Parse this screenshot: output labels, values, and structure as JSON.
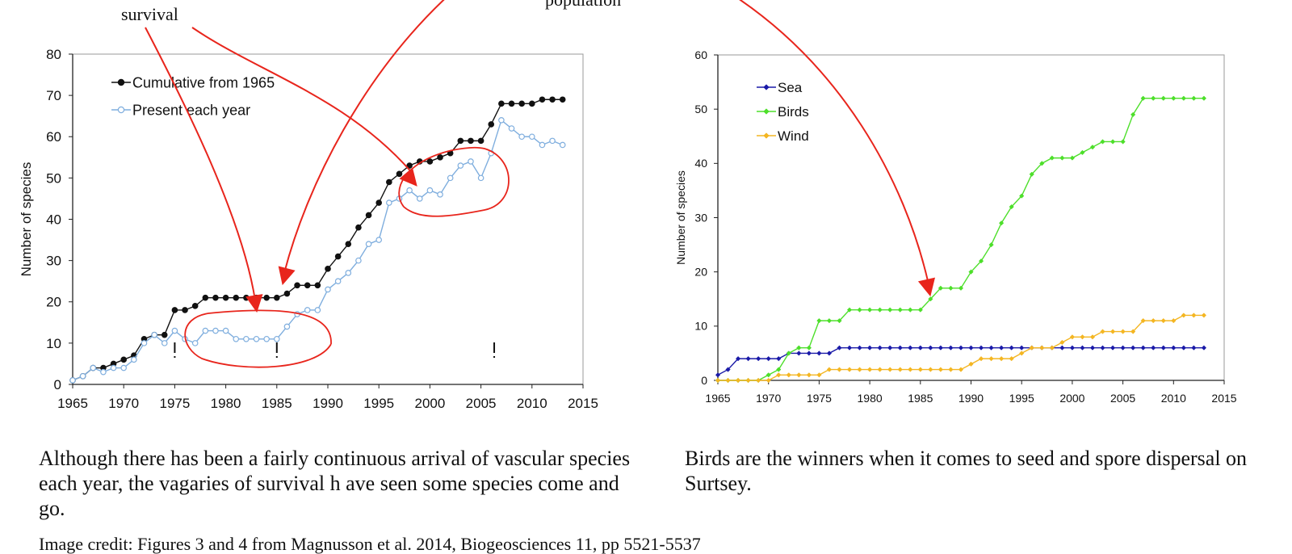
{
  "notes": {
    "survival": "survival",
    "population": "population"
  },
  "captions": {
    "left": "Although there has been a fairly continuous arrival of vascular species each year, the vagaries of survival h ave seen some species come and go.",
    "right": "Birds are the winners when it comes to seed and spore dispersal on Surtsey."
  },
  "footer": "Image credit: Figures 3 and 4 from Magnusson et al. 2014, Biogeosciences 11, pp 5521-5537",
  "colors": {
    "annotation": "#e8251c",
    "cumulative": "#111111",
    "present": "#7faede",
    "sea": "#1a1aa8",
    "birds": "#4ddf2a",
    "wind": "#f4b622"
  },
  "chart_data": [
    {
      "type": "line",
      "title": "",
      "xlabel": "",
      "ylabel": "Number of species",
      "xlim": [
        1965,
        2015
      ],
      "ylim": [
        0,
        80
      ],
      "xticks": [
        1965,
        1970,
        1975,
        1980,
        1985,
        1990,
        1995,
        2000,
        2005,
        2010,
        2015
      ],
      "yticks": [
        0,
        10,
        20,
        30,
        40,
        50,
        60,
        70,
        80
      ],
      "legend": "top-left",
      "grid": false,
      "x": [
        1965,
        1966,
        1967,
        1968,
        1969,
        1970,
        1971,
        1972,
        1973,
        1974,
        1975,
        1976,
        1977,
        1978,
        1979,
        1980,
        1981,
        1982,
        1983,
        1984,
        1985,
        1986,
        1987,
        1988,
        1989,
        1990,
        1991,
        1992,
        1993,
        1994,
        1995,
        1996,
        1997,
        1998,
        1999,
        2000,
        2001,
        2002,
        2003,
        2004,
        2005,
        2006,
        2007,
        2008,
        2009,
        2010,
        2011,
        2012,
        2013
      ],
      "series": [
        {
          "name": "Cumulative from 1965",
          "color": "#111111",
          "values": [
            1,
            2,
            4,
            4,
            5,
            6,
            7,
            11,
            12,
            12,
            18,
            18,
            19,
            21,
            21,
            21,
            21,
            21,
            21,
            21,
            21,
            22,
            24,
            24,
            24,
            28,
            31,
            34,
            38,
            41,
            44,
            49,
            51,
            53,
            54,
            54,
            55,
            56,
            59,
            59,
            59,
            63,
            68,
            68,
            68,
            68,
            69,
            69,
            69
          ]
        },
        {
          "name": "Present each year",
          "color": "#7faede",
          "values": [
            1,
            2,
            4,
            3,
            4,
            4,
            6,
            10,
            12,
            10,
            13,
            11,
            10,
            13,
            13,
            13,
            11,
            11,
            11,
            11,
            11,
            14,
            17,
            18,
            18,
            23,
            25,
            27,
            30,
            34,
            35,
            44,
            45,
            47,
            45,
            47,
            46,
            50,
            53,
            54,
            50,
            56,
            64,
            62,
            60,
            60,
            58,
            59,
            58
          ]
        }
      ],
      "annotations": {
        "event_markers_x": [
          1975,
          1985,
          2006.3
        ]
      }
    },
    {
      "type": "line",
      "title": "",
      "xlabel": "",
      "ylabel": "Number of species",
      "xlim": [
        1965,
        2015
      ],
      "ylim": [
        0,
        60
      ],
      "xticks": [
        1965,
        1970,
        1975,
        1980,
        1985,
        1990,
        1995,
        2000,
        2005,
        2010,
        2015
      ],
      "yticks": [
        0,
        10,
        20,
        30,
        40,
        50,
        60
      ],
      "legend": "top-left",
      "grid": false,
      "x": [
        1965,
        1966,
        1967,
        1968,
        1969,
        1970,
        1971,
        1972,
        1973,
        1974,
        1975,
        1976,
        1977,
        1978,
        1979,
        1980,
        1981,
        1982,
        1983,
        1984,
        1985,
        1986,
        1987,
        1988,
        1989,
        1990,
        1991,
        1992,
        1993,
        1994,
        1995,
        1996,
        1997,
        1998,
        1999,
        2000,
        2001,
        2002,
        2003,
        2004,
        2005,
        2006,
        2007,
        2008,
        2009,
        2010,
        2011,
        2012,
        2013
      ],
      "series": [
        {
          "name": "Sea",
          "color": "#1a1aa8",
          "values": [
            1,
            2,
            4,
            4,
            4,
            4,
            4,
            5,
            5,
            5,
            5,
            5,
            6,
            6,
            6,
            6,
            6,
            6,
            6,
            6,
            6,
            6,
            6,
            6,
            6,
            6,
            6,
            6,
            6,
            6,
            6,
            6,
            6,
            6,
            6,
            6,
            6,
            6,
            6,
            6,
            6,
            6,
            6,
            6,
            6,
            6,
            6,
            6,
            6
          ]
        },
        {
          "name": "Birds",
          "color": "#4ddf2a",
          "values": [
            0,
            0,
            0,
            0,
            0,
            1,
            2,
            5,
            6,
            6,
            11,
            11,
            11,
            13,
            13,
            13,
            13,
            13,
            13,
            13,
            13,
            15,
            17,
            17,
            17,
            20,
            22,
            25,
            29,
            32,
            34,
            38,
            40,
            41,
            41,
            41,
            42,
            43,
            44,
            44,
            44,
            49,
            52,
            52,
            52,
            52,
            52,
            52,
            52
          ]
        },
        {
          "name": "Wind",
          "color": "#f4b622",
          "values": [
            0,
            0,
            0,
            0,
            0,
            0,
            1,
            1,
            1,
            1,
            1,
            2,
            2,
            2,
            2,
            2,
            2,
            2,
            2,
            2,
            2,
            2,
            2,
            2,
            2,
            3,
            4,
            4,
            4,
            4,
            5,
            6,
            6,
            6,
            7,
            8,
            8,
            8,
            9,
            9,
            9,
            9,
            11,
            11,
            11,
            11,
            12,
            12,
            12
          ]
        }
      ]
    }
  ]
}
